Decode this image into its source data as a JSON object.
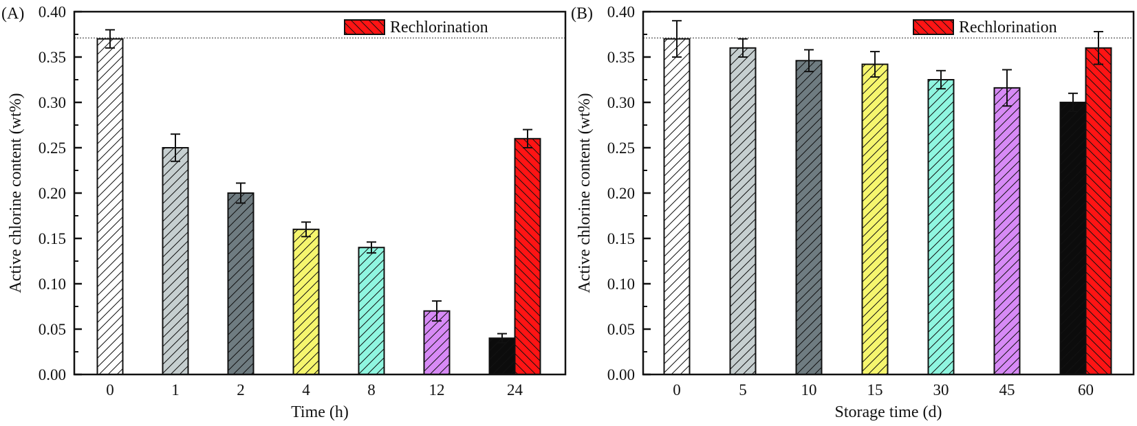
{
  "chart_data": [
    {
      "type": "bar",
      "panel_label": "(A)",
      "xlabel": "Time (h)",
      "ylabel": "Active chlorine content (wt%)",
      "ylim": [
        0,
        0.4
      ],
      "yticks": [
        "0.00",
        "0.05",
        "0.10",
        "0.15",
        "0.20",
        "0.25",
        "0.30",
        "0.35",
        "0.40"
      ],
      "reference_line": 0.371,
      "legend": {
        "label": "Rechlorination",
        "placement": "top"
      },
      "categories": [
        "0",
        "1",
        "2",
        "4",
        "8",
        "12",
        "24"
      ],
      "values": [
        0.37,
        0.25,
        0.2,
        0.16,
        0.14,
        0.07,
        0.04
      ],
      "errors": [
        0.01,
        0.015,
        0.011,
        0.008,
        0.006,
        0.011,
        0.005
      ],
      "colors": [
        "#ffffff",
        "#c6cfd0",
        "#6f7c81",
        "#f6f66e",
        "#8ff6e0",
        "#d78af6",
        "#0c0c0c"
      ],
      "rechlorination": {
        "category": "24",
        "value": 0.26,
        "error": 0.01,
        "color": "#ff1414"
      }
    },
    {
      "type": "bar",
      "panel_label": "(B)",
      "xlabel": "Storage time (d)",
      "ylabel": "Active chlorine content (wt%)",
      "ylim": [
        0,
        0.4
      ],
      "yticks": [
        "0.00",
        "0.05",
        "0.10",
        "0.15",
        "0.20",
        "0.25",
        "0.30",
        "0.35",
        "0.40"
      ],
      "reference_line": 0.371,
      "legend": {
        "label": "Rechlorination",
        "placement": "top"
      },
      "categories": [
        "0",
        "5",
        "10",
        "15",
        "30",
        "45",
        "60"
      ],
      "values": [
        0.37,
        0.36,
        0.346,
        0.342,
        0.325,
        0.316,
        0.3
      ],
      "errors": [
        0.02,
        0.01,
        0.012,
        0.014,
        0.01,
        0.02,
        0.01
      ],
      "colors": [
        "#ffffff",
        "#c6cfd0",
        "#6f7c81",
        "#f6f66e",
        "#8ff6e0",
        "#d78af6",
        "#0c0c0c"
      ],
      "rechlorination": {
        "category": "60",
        "value": 0.36,
        "error": 0.018,
        "color": "#ff1414"
      }
    }
  ]
}
